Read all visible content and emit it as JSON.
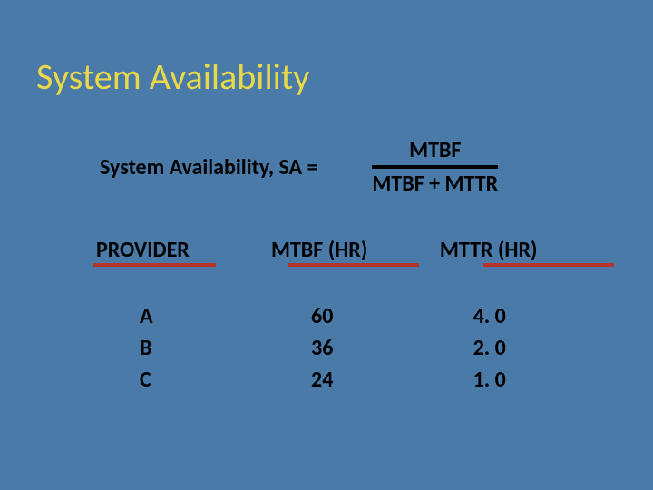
{
  "title": "System Availability",
  "formula": {
    "label": "System Availability, SA =",
    "numerator": "MTBF",
    "denominator": "MTBF + MTTR"
  },
  "table": {
    "headers": {
      "provider": "PROVIDER",
      "mtbf": "MTBF (HR)",
      "mttr": "MTTR (HR)"
    },
    "rows": [
      {
        "provider": "A",
        "mtbf": "60",
        "mttr": "4. 0"
      },
      {
        "provider": "B",
        "mtbf": "36",
        "mttr": "2. 0"
      },
      {
        "provider": "C",
        "mtbf": "24",
        "mttr": "1. 0"
      }
    ]
  },
  "style": {
    "background_color": "#4a7aa8",
    "title_color": "#e8d84a",
    "title_fontsize": 40,
    "body_color": "#000000",
    "body_fontsize": 24,
    "underline_color": "#b8332a",
    "divider_color": "#000000"
  }
}
